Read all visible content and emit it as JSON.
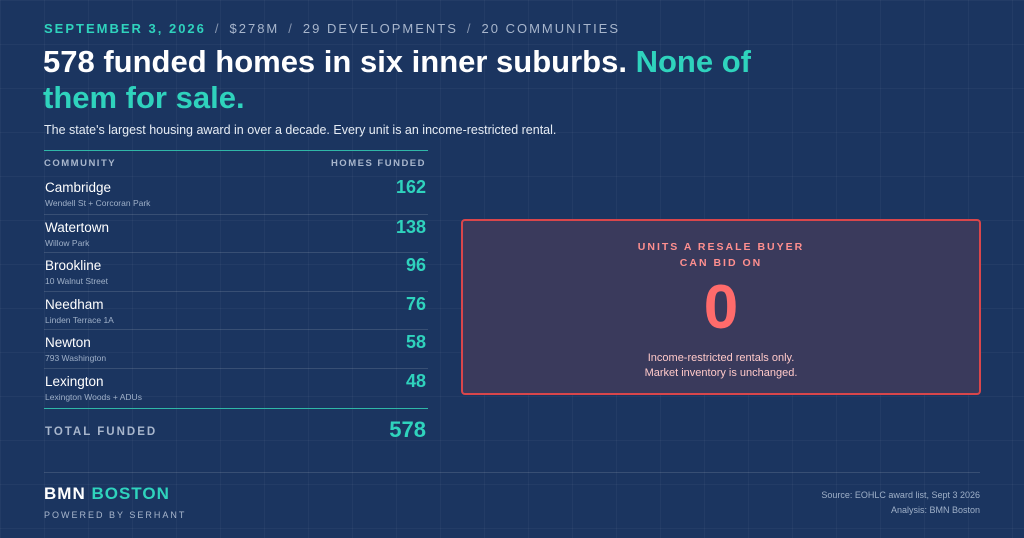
{
  "kicker": {
    "date": "SEPTEMBER 3, 2026",
    "amount": "$278M",
    "developments": "29 DEVELOPMENTS",
    "communities": "20 COMMUNITIES",
    "separator": "/"
  },
  "headline": {
    "main": "578 funded homes in six inner suburbs.",
    "accent": "None of them for sale."
  },
  "subtitle": "The state's largest housing award in over a decade. Every unit is an income-restricted rental.",
  "table": {
    "col_community": "COMMUNITY",
    "col_homes": "HOMES FUNDED",
    "rows": [
      {
        "community": "Cambridge",
        "project": "Wendell St + Corcoran Park",
        "homes": "162"
      },
      {
        "community": "Watertown",
        "project": "Willow Park",
        "homes": "138"
      },
      {
        "community": "Brookline",
        "project": "10 Walnut Street",
        "homes": "96"
      },
      {
        "community": "Needham",
        "project": "Linden Terrace 1A",
        "homes": "76"
      },
      {
        "community": "Newton",
        "project": "793 Washington",
        "homes": "58"
      },
      {
        "community": "Lexington",
        "project": "Lexington Woods + ADUs",
        "homes": "48"
      }
    ],
    "total_label": "TOTAL FUNDED",
    "total_value": "578"
  },
  "callout": {
    "title_line1": "UNITS A RESALE BUYER",
    "title_line2": "CAN BID ON",
    "value": "0",
    "note_line1": "Income-restricted rentals only.",
    "note_line2": "Market inventory is unchanged."
  },
  "footer": {
    "brand_main": "BMN",
    "brand_accent": "BOSTON",
    "powered": "POWERED BY SERHANT",
    "source": "Source: EOHLC award list, Sept 3 2026",
    "analysis": "Analysis: BMN Boston"
  },
  "colors": {
    "background": "#1b3560",
    "accent_teal": "#2fd3bd",
    "alert_red": "#d9464b"
  }
}
